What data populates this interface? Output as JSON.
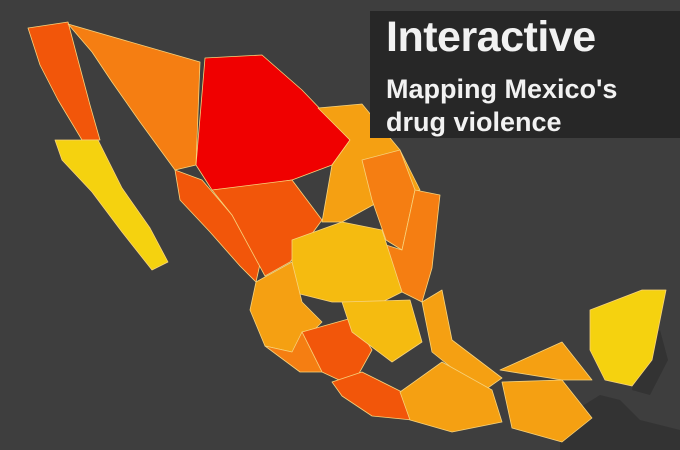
{
  "title": {
    "heading": "Interactive",
    "subtitle_line1": "Mapping Mexico's",
    "subtitle_line2": "drug violence"
  },
  "colors": {
    "background": "#3e3e3e",
    "title_box": "#272727",
    "highest": "#f00000",
    "very_high": "#f2560a",
    "high": "#f57e12",
    "medium": "#f5a012",
    "low": "#f5bb10",
    "lowest": "#f5d20f",
    "neighbors": "#333333"
  },
  "regions": [
    {
      "level": "very_high"
    },
    {
      "level": "lowest"
    },
    {
      "level": "high"
    },
    {
      "level": "highest"
    },
    {
      "level": "very_high"
    },
    {
      "level": "very_high"
    },
    {
      "level": "medium"
    },
    {
      "level": "high"
    },
    {
      "level": "high"
    },
    {
      "level": "low"
    },
    {
      "level": "medium"
    },
    {
      "level": "very_high"
    },
    {
      "level": "very_high"
    },
    {
      "level": "low"
    },
    {
      "level": "medium"
    },
    {
      "level": "medium"
    },
    {
      "level": "medium"
    },
    {
      "level": "medium"
    },
    {
      "level": "lowest"
    },
    {
      "level": "high"
    }
  ]
}
